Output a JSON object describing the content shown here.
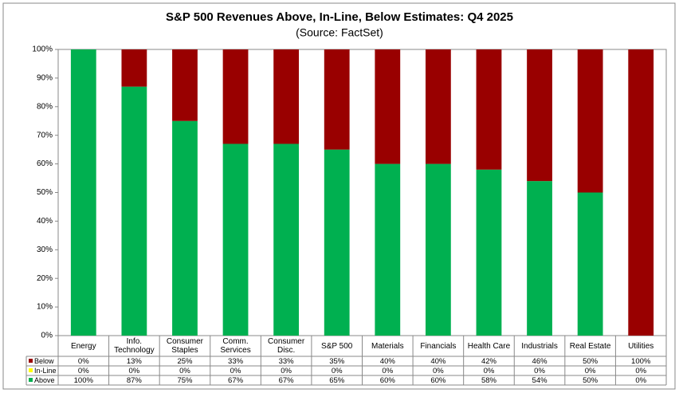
{
  "chart_data": {
    "type": "stacked-bar",
    "title": "S&P 500 Revenues Above, In-Line, Below Estimates: Q4 2025",
    "subtitle": "(Source: FactSet)",
    "categories": [
      "Energy",
      "Info.\nTechnology",
      "Consumer\nStaples",
      "Comm.\nServices",
      "Consumer\nDisc.",
      "S&P 500",
      "Materials",
      "Financials",
      "Health Care",
      "Industrials",
      "Real Estate",
      "Utilities"
    ],
    "series": [
      {
        "name": "Above",
        "color": "#00b050",
        "values": [
          100,
          87,
          75,
          67,
          67,
          65,
          60,
          60,
          58,
          54,
          50,
          0
        ],
        "value_labels": [
          "100%",
          "87%",
          "75%",
          "67%",
          "67%",
          "65%",
          "60%",
          "60%",
          "58%",
          "54%",
          "50%",
          "0%"
        ]
      },
      {
        "name": "In-Line",
        "color": "#ffff00",
        "values": [
          0,
          0,
          0,
          0,
          0,
          0,
          0,
          0,
          0,
          0,
          0,
          0
        ],
        "value_labels": [
          "0%",
          "0%",
          "0%",
          "0%",
          "0%",
          "0%",
          "0%",
          "0%",
          "0%",
          "0%",
          "0%",
          "0%"
        ]
      },
      {
        "name": "Below",
        "color": "#990000",
        "values": [
          0,
          13,
          25,
          33,
          33,
          35,
          40,
          40,
          42,
          46,
          50,
          100
        ],
        "value_labels": [
          "0%",
          "13%",
          "25%",
          "33%",
          "33%",
          "35%",
          "40%",
          "40%",
          "42%",
          "46%",
          "50%",
          "100%"
        ]
      }
    ],
    "ylim": [
      0,
      100
    ],
    "yticks": [
      {
        "value": 0,
        "label": "0%"
      },
      {
        "value": 10,
        "label": "10%"
      },
      {
        "value": 20,
        "label": "20%"
      },
      {
        "value": 30,
        "label": "30%"
      },
      {
        "value": 40,
        "label": "40%"
      },
      {
        "value": 50,
        "label": "50%"
      },
      {
        "value": 60,
        "label": "60%"
      },
      {
        "value": 70,
        "label": "70%"
      },
      {
        "value": 80,
        "label": "80%"
      },
      {
        "value": 90,
        "label": "90%"
      },
      {
        "value": 100,
        "label": "100%"
      }
    ],
    "grid": false
  }
}
